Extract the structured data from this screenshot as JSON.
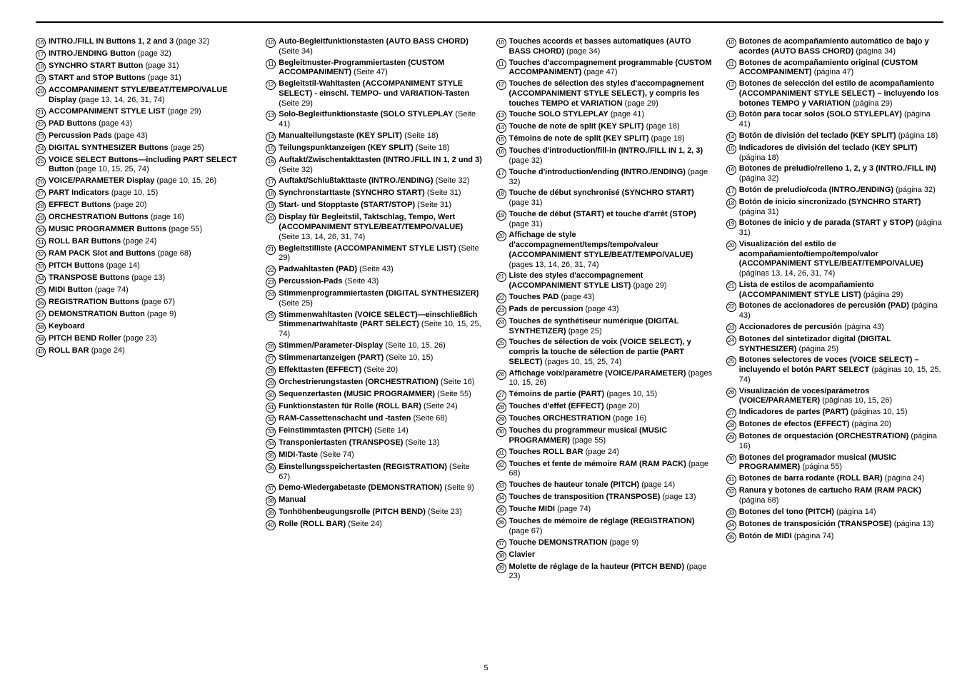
{
  "page_number": "5",
  "col1": [
    {
      "n": "16",
      "t": "<b>INTRO./FILL IN Buttons 1, 2 and 3</b> (page 32)"
    },
    {
      "n": "17",
      "t": "<b>INTRO./ENDING Button</b> (page 32)"
    },
    {
      "n": "18",
      "t": "<b>SYNCHRO START Button</b> (page 31)"
    },
    {
      "n": "19",
      "t": "<b>START and STOP Buttons</b> (page 31)"
    },
    {
      "n": "20",
      "t": "<b>ACCOMPANIMENT STYLE/BEAT/TEMPO/VALUE Display</b> (page 13, 14, 26, 31, 74)"
    },
    {
      "n": "21",
      "t": "<b>ACCOMPANIMENT STYLE LIST</b> (page 29)"
    },
    {
      "n": "22",
      "t": "<b>PAD Buttons</b> (page 43)"
    },
    {
      "n": "23",
      "t": "<b>Percussion Pads</b> (page 43)"
    },
    {
      "n": "24",
      "t": "<b>DIGITAL SYNTHESIZER Buttons</b> (page 25)"
    },
    {
      "n": "25",
      "t": "<b>VOICE SELECT Buttons—including PART SELECT Button</b> (page 10, 15, 25, 74)"
    },
    {
      "n": "26",
      "t": "<b>VOICE/PARAMETER Display</b> (page 10, 15, 26)"
    },
    {
      "n": "27",
      "t": "<b>PART Indicators</b> (page 10, 15)"
    },
    {
      "n": "28",
      "t": "<b>EFFECT Buttons</b> (page 20)"
    },
    {
      "n": "29",
      "t": "<b>ORCHESTRATION Buttons</b> (page 16)"
    },
    {
      "n": "30",
      "t": "<b>MUSIC PROGRAMMER Buttons</b> (page 55)"
    },
    {
      "n": "31",
      "t": "<b>ROLL BAR Buttons</b> (page 24)"
    },
    {
      "n": "32",
      "t": "<b>RAM PACK Slot and Buttons</b> (page 68)"
    },
    {
      "n": "33",
      "t": "<b>PITCH Buttons</b> (page 14)"
    },
    {
      "n": "34",
      "t": "<b>TRANSPOSE Buttons</b> (page 13)"
    },
    {
      "n": "35",
      "t": "<b>MIDI Button</b> (page 74)"
    },
    {
      "n": "36",
      "t": "<b>REGISTRATION Buttons</b> (page 67)"
    },
    {
      "n": "37",
      "t": "<b>DEMONSTRATION Button</b> (page 9)"
    },
    {
      "n": "38",
      "t": "<b>Keyboard</b>"
    },
    {
      "n": "39",
      "t": "<b>PITCH BEND Roller</b> (page 23)"
    },
    {
      "n": "40",
      "t": "<b>ROLL BAR</b> (page 24)"
    }
  ],
  "col2": [
    {
      "n": "10",
      "t": "<b>Auto-Begleitfunktionstasten (AUTO BASS CHORD)</b> (Seite 34)"
    },
    {
      "n": "11",
      "t": "<b>Begleitmuster-Programmiertasten (CUSTOM ACCOMPANIMENT)</b> (Seite 47)"
    },
    {
      "n": "12",
      "t": "<b>Begleitstil-Wahltasten (ACCOMPANIMENT STYLE SELECT) - einschl. TEMPO- und VARIATION-Tasten</b> (Seite 29)"
    },
    {
      "n": "13",
      "t": "<b>Solo-Begleitfunktionstaste (SOLO STYLEPLAY</b> (Seite 41)"
    },
    {
      "n": "14",
      "t": "<b>Manualteilungstaste (KEY SPLIT)</b> (Seite 18)"
    },
    {
      "n": "15",
      "t": "<b>Teilungspunktanzeigen (KEY SPLIT)</b> (Seite 18)"
    },
    {
      "n": "16",
      "t": "<b>Auftakt/Zwischentakttasten (INTRO./FILL IN 1, 2 und 3)</b> (Seite 32)"
    },
    {
      "n": "17",
      "t": "<b>Auftakt/Schlußtakttaste (INTRO./ENDING)</b> (Seite 32)"
    },
    {
      "n": "18",
      "t": "<b>Synchronstarttaste (SYNCHRO START)</b> (Seite 31)"
    },
    {
      "n": "19",
      "t": "<b>Start- und Stopptaste (START/STOP)</b> (Seite 31)"
    },
    {
      "n": "20",
      "t": "<b>Display für Begleitstil, Taktschlag, Tempo, Wert (ACCOMPANIMENT STYLE/BEAT/TEMPO/VALUE)</b> (Seite 13, 14, 26, 31, 74)"
    },
    {
      "n": "21",
      "t": "<b>Begleitstilliste (ACCOMPANIMENT STYLE LIST)</b> (Seite 29)"
    },
    {
      "n": "22",
      "t": "<b>Padwahltasten (PAD)</b> (Seite 43)"
    },
    {
      "n": "23",
      "t": "<b>Percussion-Pads</b> (Seite 43)"
    },
    {
      "n": "24",
      "t": "<b>Stimmenprogrammiertasten (DIGITAL SYNTHESIZER)</b> (Seite 25)"
    },
    {
      "n": "25",
      "t": "<b>Stimmenwahltasten (VOICE SELECT)—einschließlich Stimmenartwahltaste (PART SELECT)</b> (Seite 10, 15, 25, 74)"
    },
    {
      "n": "26",
      "t": "<b>Stimmen/Parameter-Display</b> (Seite 10, 15, 26)"
    },
    {
      "n": "27",
      "t": "<b>Stimmenartanzeigen (PART)</b> (Seite 10, 15)"
    },
    {
      "n": "28",
      "t": "<b>Effekttasten (EFFECT)</b> (Seite 20)"
    },
    {
      "n": "29",
      "t": "<b>Orchestrierungstasten (ORCHESTRATION)</b> (Seite 16)"
    },
    {
      "n": "30",
      "t": "<b>Sequenzertasten (MUSIC PROGRAMMER)</b> (Seite 55)"
    },
    {
      "n": "31",
      "t": "<b>Funktionstasten für Rolle (ROLL BAR)</b> (Seite 24)"
    },
    {
      "n": "32",
      "t": "<b>RAM-Cassettenschacht und -tasten</b> (Seite 68)"
    },
    {
      "n": "33",
      "t": "<b>Feinstimmtasten (PITCH)</b> (Seite 14)"
    },
    {
      "n": "34",
      "t": "<b>Transponiertasten (TRANSPOSE)</b> (Seite 13)"
    },
    {
      "n": "35",
      "t": "<b>MIDI-Taste</b> (Seite 74)"
    },
    {
      "n": "36",
      "t": "<b>Einstellungsspeichertasten (REGISTRATION)</b> (Seite 67)"
    },
    {
      "n": "37",
      "t": "<b>Demo-Wiedergabetaste (DEMONSTRATION)</b> (Seite 9)"
    },
    {
      "n": "38",
      "t": "<b>Manual</b>"
    },
    {
      "n": "39",
      "t": "<b>Tonhöhenbeugungsrolle (PITCH BEND)</b> (Seite 23)"
    },
    {
      "n": "40",
      "t": "<b>Rolle (ROLL BAR)</b> (Seite 24)"
    }
  ],
  "col3": [
    {
      "n": "10",
      "t": "<b>Touches accords et basses automatiques (AUTO BASS CHORD)</b> (page 34)"
    },
    {
      "n": "11",
      "t": "<b>Touches d'accompagnement programmable (CUSTOM ACCOMPANIMENT)</b> (page 47)"
    },
    {
      "n": "12",
      "t": "<b>Touches de sélection des styles d'accompagnement (ACCOMPANIMENT STYLE SELECT), y compris les touches TEMPO et VARIATION</b> (page 29)"
    },
    {
      "n": "13",
      "t": "<b>Touche SOLO STYLEPLAY</b> (page 41)"
    },
    {
      "n": "14",
      "t": "<b>Touche de note de split (KEY SPLIT)</b> (page 18)"
    },
    {
      "n": "15",
      "t": "<b>Témoins de note de split (KEY SPLIT)</b> (page 18)"
    },
    {
      "n": "16",
      "t": "<b>Touches d'introduction/fill-in (INTRO./FILL IN 1, 2, 3)</b> (page 32)"
    },
    {
      "n": "17",
      "t": "<b>Touche d'introduction/ending (INTRO./ENDING)</b> (page 32)"
    },
    {
      "n": "18",
      "t": "<b>Touche de début synchronisé (SYNCHRO START)</b> (page 31)"
    },
    {
      "n": "19",
      "t": "<b>Touche de début (START) et touche d'arrêt (STOP)</b> (page 31)"
    },
    {
      "n": "20",
      "t": "<b>Affichage de style d'accompagnement/temps/tempo/valeur (ACCOMPANIMENT STYLE/BEAT/TEMPO/VALUE)</b> (pages 13, 14, 26, 31, 74)"
    },
    {
      "n": "21",
      "t": "<b>Liste des styles d'accompagnement (ACCOMPANIMENT STYLE LIST)</b> (page 29)"
    },
    {
      "n": "22",
      "t": "<b>Touches PAD</b> (page 43)"
    },
    {
      "n": "23",
      "t": "<b>Pads de percussion</b> (page 43)"
    },
    {
      "n": "24",
      "t": "<b>Touches de synthétiseur numérique (DIGITAL SYNTHETIZER)</b> (page 25)"
    },
    {
      "n": "25",
      "t": "<b>Touches de sélection de voix (VOICE SELECT), y compris la touche de sélection de partie (PART SELECT)</b> (pages 10, 15, 25, 74)"
    },
    {
      "n": "26",
      "t": "<b>Affichage voix/paramètre (VOICE/PARAMETER)</b> (pages 10, 15, 26)"
    },
    {
      "n": "27",
      "t": "<b>Témoins de partie (PART)</b> (pages 10, 15)"
    },
    {
      "n": "28",
      "t": "<b>Touches d'effet (EFFECT)</b> (page 20)"
    },
    {
      "n": "29",
      "t": "<b>Touches ORCHESTRATION</b> (page 16)"
    },
    {
      "n": "30",
      "t": "<b>Touches du programmeur musical (MUSIC PROGRAMMER)</b> (page 55)"
    },
    {
      "n": "31",
      "t": "<b>Touches ROLL BAR</b> (page 24)"
    },
    {
      "n": "32",
      "t": "<b>Touches et fente de mémoire RAM (RAM PACK)</b> (page 68)"
    },
    {
      "n": "33",
      "t": "<b>Touches de hauteur tonale (PITCH)</b> (page 14)"
    },
    {
      "n": "34",
      "t": "<b>Touches de transposition (TRANSPOSE)</b> (page 13)"
    },
    {
      "n": "35",
      "t": "<b>Touche MIDI</b> (page 74)"
    },
    {
      "n": "36",
      "t": "<b>Touches de mémoire de réglage (REGISTRATION)</b> (page 67)"
    },
    {
      "n": "37",
      "t": "<b>Touche DEMONSTRATION</b> (page 9)"
    },
    {
      "n": "38",
      "t": "<b>Clavier</b>"
    },
    {
      "n": "39",
      "t": "<b>Molette de réglage de la hauteur (PITCH BEND)</b> (page 23)"
    }
  ],
  "col4": [
    {
      "n": "10",
      "t": "<b>Botones de acompañamiento automático de bajo y acordes (AUTO BASS CHORD)</b> (página 34)"
    },
    {
      "n": "11",
      "t": "<b>Botones de acompañamiento original (CUSTOM ACCOMPANIMENT)</b> (página 47)"
    },
    {
      "n": "12",
      "t": "<b>Botones de selección del estilo de acompañamiento (ACCOMPANIMENT STYLE SELECT) – incluyendo los botones TEMPO y VARIATION</b> (página 29)"
    },
    {
      "n": "13",
      "t": "<b>Botón para tocar solos (SOLO STYLEPLAY)</b> (página 41)"
    },
    {
      "n": "14",
      "t": "<b>Botón de división del teclado (KEY SPLIT)</b> (página 18)"
    },
    {
      "n": "15",
      "t": "<b>Indicadores de división del teclado (KEY SPLIT)</b> (página 18)"
    },
    {
      "n": "16",
      "t": "<b>Botones de preludio/relleno 1, 2, y 3 (INTRO./FILL IN)</b> (página 32)"
    },
    {
      "n": "17",
      "t": "<b>Botón de preludio/coda (INTRO./ENDING)</b> (página 32)"
    },
    {
      "n": "18",
      "t": "<b>Botón de inicio sincronizado (SYNCHRO START)</b> (página 31)"
    },
    {
      "n": "19",
      "t": "<b>Botones de inicio y de parada (START y STOP)</b> (página 31)"
    },
    {
      "n": "20",
      "t": "<b>Visualización del estilo de acompañamiento/tiempo/tempo/valor (ACCOMPANIMENT STYLE/BEAT/TEMPO/VALUE)</b> (páginas 13, 14, 26, 31, 74)"
    },
    {
      "n": "21",
      "t": "<b>Lista de estilos de acompañamiento (ACCOMPANIMENT STYLE LIST)</b> (página 29)"
    },
    {
      "n": "22",
      "t": "<b>Botones de accionadores de percusión (PAD)</b> (página 43)"
    },
    {
      "n": "23",
      "t": "<b>Accionadores de percusión</b> (página 43)"
    },
    {
      "n": "24",
      "t": "<b>Botones del sintetizador digital (DIGITAL SYNTHESIZER)</b> (página 25)"
    },
    {
      "n": "25",
      "t": "<b>Botones selectores de voces (VOICE SELECT) – incluyendo el botón PART SELECT</b> (páginas 10, 15, 25, 74)"
    },
    {
      "n": "26",
      "t": "<b>Visualización de voces/parámetros (VOICE/PARAMETER)</b> (páginas 10, 15, 26)"
    },
    {
      "n": "27",
      "t": "<b>Indicadores de partes (PART)</b> (páginas 10, 15)"
    },
    {
      "n": "28",
      "t": "<b>Botones de efectos (EFFECT)</b> (página 20)"
    },
    {
      "n": "29",
      "t": "<b>Botones de orquestación (ORCHESTRATION)</b> (página 16)"
    },
    {
      "n": "30",
      "t": "<b>Botones del programador musical (MUSIC PROGRAMMER)</b> (página 55)"
    },
    {
      "n": "31",
      "t": "<b>Botones de barra rodante (ROLL BAR)</b> (página 24)"
    },
    {
      "n": "32",
      "t": "<b>Ranura y botones de cartucho RAM (RAM PACK)</b> (página 68)"
    },
    {
      "n": "33",
      "t": "<b>Botones del tono (PITCH)</b> (página 14)"
    },
    {
      "n": "34",
      "t": "<b>Botones de transposición (TRANSPOSE)</b> (página 13)"
    },
    {
      "n": "35",
      "t": "<b>Botón de MIDI</b> (página 74)"
    }
  ]
}
